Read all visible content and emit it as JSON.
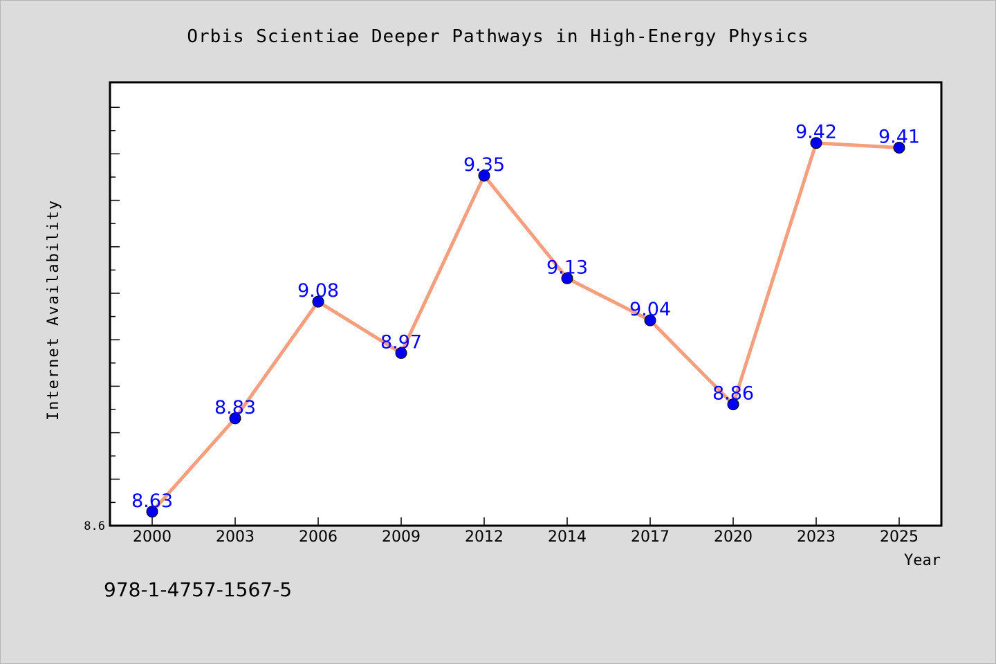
{
  "chart_data": {
    "type": "line",
    "title": "Orbis Scientiae Deeper Pathways in High-Energy Physics",
    "xlabel": "Year",
    "ylabel": "Internet Availability",
    "categories": [
      "2000",
      "2003",
      "2006",
      "2009",
      "2012",
      "2014",
      "2017",
      "2020",
      "2023",
      "2025"
    ],
    "series": [
      {
        "values": [
          8.63,
          8.83,
          9.08,
          8.97,
          9.35,
          9.13,
          9.04,
          8.86,
          9.42,
          9.41
        ]
      }
    ],
    "ylim": [
      8.6,
      9.55
    ],
    "y_tick_label": "8.6",
    "grid": false,
    "legend": "none",
    "line_color": "#f4a080",
    "marker_color": "#0000ee",
    "label_color": "#0000ff"
  },
  "footer": {
    "isbn": "978-1-4757-1567-5"
  }
}
